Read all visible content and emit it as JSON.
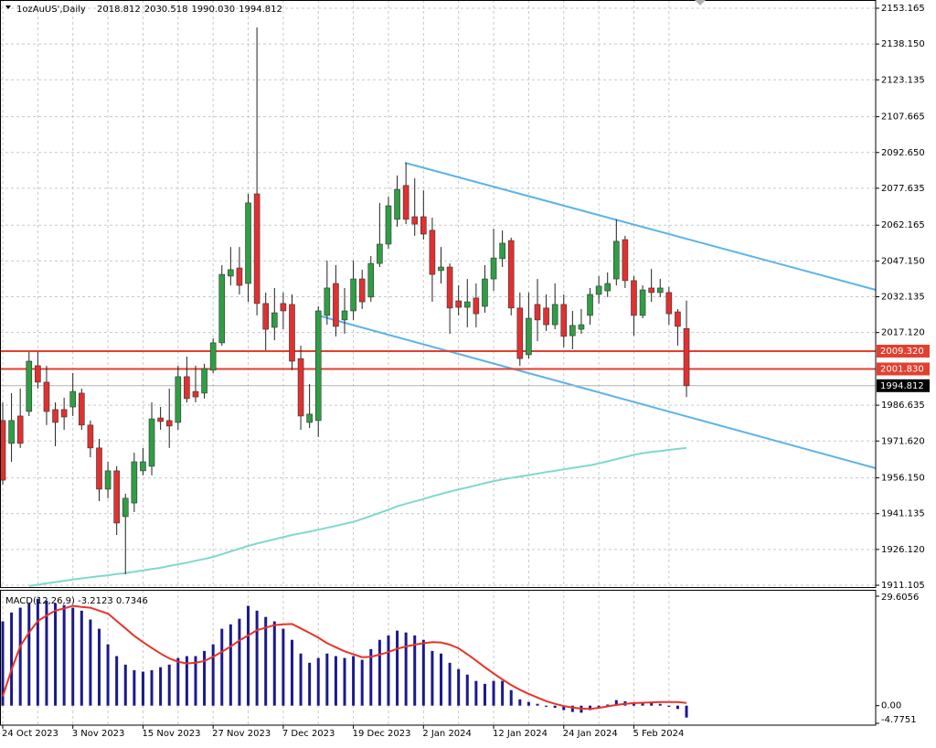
{
  "chart_data": [
    {
      "type": "candlestick",
      "header": "1ozAuUS',Daily",
      "header_values": [
        "2018.812",
        "2030.518",
        "1990.030",
        "1994.812"
      ],
      "categories": [
        "24 Oct 2023",
        null,
        null,
        null,
        null,
        null,
        null,
        null,
        "3 Nov 2023",
        null,
        null,
        null,
        null,
        null,
        null,
        null,
        "15 Nov 2023",
        null,
        null,
        null,
        null,
        null,
        null,
        null,
        "27 Nov 2023",
        null,
        null,
        null,
        null,
        null,
        null,
        null,
        "7 Dec 2023",
        null,
        null,
        null,
        null,
        null,
        null,
        null,
        "19 Dec 2023",
        null,
        null,
        null,
        null,
        null,
        null,
        null,
        "2 Jan 2024",
        null,
        null,
        null,
        null,
        null,
        null,
        null,
        "12 Jan 2024",
        null,
        null,
        null,
        null,
        null,
        null,
        null,
        "24 Jan 2024",
        null,
        null,
        null,
        null,
        null,
        null,
        null,
        "5 Feb 2024",
        null,
        null,
        null,
        null,
        null,
        null
      ],
      "open": [
        1980.2,
        1970.6,
        1982.1,
        1984.0,
        2003.2,
        1996.3,
        1984.8,
        1984.8,
        1985.9,
        1991.7,
        1978.3,
        1968.7,
        1951.4,
        1959.1,
        1939.9,
        1945.6,
        1959.1,
        1961.0,
        1981.3,
        1980.2,
        1979.4,
        1998.6,
        1992.4,
        1991.7,
        2001.3,
        2012.8,
        2040.8,
        2044.2,
        2037.7,
        2075.3,
        2029.3,
        2019.3,
        2029.3,
        2028.9,
        2006.2,
        1979.4,
        1980.2,
        2024.3,
        2037.7,
        2022.4,
        2026.2,
        2039.6,
        2032.0,
        2046.1,
        2054.2,
        2064.6,
        2078.8,
        2065.7,
        2065.7,
        2060.0,
        2043.1,
        2044.6,
        2030.4,
        2027.7,
        2031.6,
        2028.1,
        2039.6,
        2048.1,
        2055.7,
        2027.4,
        2007.8,
        2028.9,
        2027.4,
        2020.4,
        2028.9,
        2015.8,
        2018.5,
        2024.3,
        2033.1,
        2034.6,
        2039.6,
        2056.1,
        2038.9,
        2024.3,
        2035.8,
        2033.9,
        2033.9,
        2025.8,
        2018.812
      ],
      "high": [
        1987.8,
        1991.7,
        1993.6,
        2008.9,
        2008.9,
        2003.2,
        1987.8,
        1989.8,
        2000.1,
        1993.6,
        1980.2,
        1972.5,
        1962.9,
        1961.0,
        1949.5,
        1966.7,
        1968.7,
        1987.8,
        1985.9,
        1993.6,
        2003.2,
        2007.0,
        2003.2,
        2004.0,
        2014.7,
        2045.4,
        2053.0,
        2053.0,
        2075.3,
        2145.1,
        2033.9,
        2035.8,
        2033.9,
        2033.1,
        2011.6,
        1995.5,
        2028.1,
        2047.3,
        2045.4,
        2035.8,
        2047.3,
        2043.5,
        2049.2,
        2071.5,
        2074.2,
        2083.0,
        2088.3,
        2081.8,
        2076.8,
        2065.3,
        2053.0,
        2046.1,
        2036.9,
        2039.6,
        2037.7,
        2045.4,
        2060.7,
        2060.0,
        2056.9,
        2033.9,
        2033.9,
        2039.6,
        2033.1,
        2037.7,
        2033.1,
        2026.2,
        2027.0,
        2035.8,
        2040.8,
        2042.3,
        2064.6,
        2057.7,
        2040.8,
        2036.9,
        2043.8,
        2039.6,
        2036.2,
        2027.0,
        2030.518
      ],
      "low": [
        1953.3,
        1962.9,
        1968.7,
        1982.1,
        1993.6,
        1978.3,
        1969.4,
        1976.3,
        1982.1,
        1976.3,
        1964.8,
        1946.4,
        1947.6,
        1932.2,
        1915.7,
        1941.8,
        1957.2,
        1957.2,
        1976.3,
        1968.7,
        1976.3,
        1987.8,
        1987.8,
        1989.4,
        2000.1,
        2011.6,
        2036.9,
        2033.1,
        2030.0,
        2024.3,
        2009.7,
        2013.9,
        2018.5,
        2001.3,
        1976.3,
        1977.1,
        1973.3,
        2020.4,
        2015.5,
        2016.6,
        2022.4,
        2027.0,
        2030.0,
        2044.6,
        2052.3,
        2061.5,
        2062.6,
        2057.7,
        2056.1,
        2030.0,
        2037.7,
        2016.6,
        2024.3,
        2019.3,
        2019.3,
        2025.4,
        2034.6,
        2044.6,
        2024.3,
        2003.2,
        2006.2,
        2013.5,
        2017.8,
        2018.5,
        2010.9,
        2010.1,
        2016.6,
        2020.4,
        2029.3,
        2032.0,
        2036.9,
        2035.8,
        2015.8,
        2023.1,
        2030.0,
        2032.0,
        2020.4,
        2011.6,
        1990.03
      ],
      "close": [
        1955.2,
        1980.2,
        1970.6,
        2005.1,
        1996.3,
        1984.0,
        1979.4,
        1981.7,
        1992.4,
        1978.3,
        1968.7,
        1951.4,
        1959.1,
        1937.2,
        1947.6,
        1962.9,
        1962.9,
        1980.9,
        1979.8,
        1977.9,
        1998.6,
        1989.4,
        1990.1,
        2002.0,
        2012.8,
        2041.5,
        2043.5,
        2036.9,
        2071.5,
        2029.3,
        2018.5,
        2025.4,
        2026.2,
        2005.1,
        1982.1,
        1982.9,
        2026.2,
        2035.8,
        2019.7,
        2026.2,
        2039.6,
        2030.0,
        2046.1,
        2054.2,
        2070.3,
        2077.2,
        2064.6,
        2062.6,
        2058.4,
        2041.5,
        2044.6,
        2027.4,
        2027.7,
        2030.0,
        2025.0,
        2039.6,
        2048.4,
        2054.6,
        2027.4,
        2006.2,
        2023.1,
        2022.4,
        2020.4,
        2028.9,
        2015.5,
        2020.1,
        2020.4,
        2033.1,
        2036.6,
        2037.7,
        2055.4,
        2038.9,
        2024.3,
        2035.0,
        2033.9,
        2035.8,
        2025.0,
        2019.7,
        1994.812
      ],
      "up_color": "#2f9e44",
      "down_color": "#e03131",
      "ma": {
        "color": "#7fd8cf",
        "values": [
          null,
          null,
          null,
          1910.8,
          1911.3,
          1911.9,
          1912.4,
          1912.9,
          1913.5,
          1914.0,
          1914.4,
          1914.9,
          1915.3,
          1915.8,
          1916.2,
          1916.8,
          1917.3,
          1917.9,
          1918.4,
          1919.2,
          1919.9,
          1920.6,
          1921.4,
          1922.1,
          1923.0,
          1924.1,
          1925.3,
          1926.4,
          1927.6,
          1928.6,
          1929.5,
          1930.4,
          1931.3,
          1932.2,
          1932.9,
          1933.6,
          1934.4,
          1935.2,
          1936.0,
          1936.9,
          1937.7,
          1938.9,
          1940.2,
          1941.5,
          1942.8,
          1944.2,
          1945.3,
          1946.3,
          1947.3,
          1948.4,
          1949.4,
          1950.4,
          1951.3,
          1952.1,
          1953.0,
          1953.9,
          1954.8,
          1955.5,
          1956.1,
          1956.7,
          1957.3,
          1957.9,
          1958.6,
          1959.1,
          1959.7,
          1960.3,
          1960.9,
          1961.4,
          1962.2,
          1963.1,
          1964.0,
          1964.9,
          1965.8,
          1966.5,
          1967.0,
          1967.4,
          1967.9,
          1968.3,
          1968.7
        ]
      },
      "levels": [
        {
          "value": 2009.32,
          "label": "2009.320",
          "color": "#e2402f"
        },
        {
          "value": 2001.83,
          "label": "2001.830",
          "color": "#e2402f"
        }
      ],
      "last_price": 1994.812,
      "ylim": [
        1910.34,
        2156.62
      ],
      "yticks": [
        2153.165,
        {
          "value": 2138.15,
          "label": "2138.150"
        },
        2123.135,
        2107.665,
        {
          "value": 2092.65,
          "label": "2092.650"
        },
        2077.635,
        2062.165,
        {
          "value": 2047.15,
          "label": "2047.150"
        },
        2032.135,
        {
          "value": 2017.12,
          "label": "2017.120"
        },
        1986.635,
        {
          "value": 1971.62,
          "label": "1971.620"
        },
        {
          "value": 1956.15,
          "label": "1956.150"
        },
        1941.135,
        {
          "value": 1926.12,
          "label": "1926.120"
        },
        1911.105
      ],
      "grid": true
    },
    {
      "type": "macd",
      "title": "MACD(12,26,9) -3.2123 0.7346",
      "histogram": {
        "color": "#1a1a8c",
        "values": [
          22.8,
          25.2,
          26.5,
          27.7,
          28.9,
          28.4,
          27.7,
          27.2,
          26.5,
          25.7,
          23.3,
          20.8,
          16.6,
          13.4,
          11.1,
          9.6,
          9.2,
          9.6,
          10.4,
          11.1,
          12.9,
          13.4,
          13.4,
          14.8,
          16.6,
          20.8,
          22.0,
          23.5,
          27.0,
          25.7,
          24.0,
          22.8,
          20.8,
          17.8,
          14.1,
          11.6,
          12.9,
          14.1,
          13.4,
          12.9,
          13.4,
          12.4,
          15.3,
          17.8,
          19.0,
          20.3,
          19.8,
          19.0,
          17.8,
          14.8,
          14.1,
          11.6,
          9.9,
          8.4,
          6.7,
          5.9,
          6.7,
          6.7,
          4.2,
          1.7,
          1.0,
          0.5,
          -0.3,
          -0.6,
          -1.2,
          -1.7,
          -1.9,
          -1.2,
          -0.6,
          0.3,
          1.5,
          1.2,
          0.7,
          0.7,
          1.0,
          0.5,
          -0.3,
          -0.9,
          -3.2123
        ]
      },
      "signal": {
        "color": "#e8342a",
        "values": [
          2.5,
          9.7,
          16.1,
          19.8,
          22.9,
          24.4,
          25.7,
          26.3,
          27.0,
          26.7,
          26.5,
          25.7,
          24.9,
          22.9,
          20.9,
          18.9,
          17.2,
          15.6,
          14.1,
          12.8,
          11.9,
          11.4,
          11.6,
          12.1,
          13.2,
          14.6,
          16.0,
          17.6,
          19.0,
          20.4,
          21.1,
          21.8,
          22.0,
          22.1,
          20.9,
          19.7,
          18.4,
          16.9,
          15.8,
          14.7,
          13.9,
          13.1,
          13.2,
          13.8,
          14.5,
          15.4,
          16.0,
          16.5,
          16.9,
          17.2,
          17.1,
          16.5,
          15.5,
          13.9,
          12.2,
          10.4,
          8.7,
          7.1,
          5.6,
          4.3,
          3.2,
          2.2,
          1.2,
          0.5,
          -0.1,
          -0.5,
          -0.8,
          -0.9,
          -0.6,
          -0.2,
          0.2,
          0.5,
          0.7,
          0.8,
          0.9,
          1.0,
          1.0,
          1.0,
          0.7346
        ]
      },
      "ylim": [
        -5.27,
        31.34
      ],
      "yticks": [
        29.6056,
        {
          "value": 0,
          "label": "0.00"
        },
        -4.7751
      ]
    }
  ]
}
